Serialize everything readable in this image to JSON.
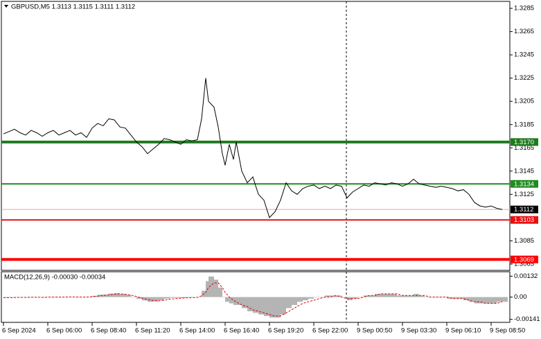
{
  "chart_data": [
    {
      "type": "line",
      "title": "GBPUSD,M5  1.3113 1.3115 1.3111 1.3112",
      "color": "#000000",
      "x": [
        0,
        4,
        8,
        12,
        16,
        20,
        24,
        28,
        32,
        36,
        40,
        44,
        48,
        52,
        56,
        60,
        64,
        68,
        72,
        76,
        80,
        84,
        88,
        92,
        96,
        100,
        104,
        108,
        112,
        116,
        120,
        124,
        128,
        132,
        136,
        140,
        143,
        146,
        148,
        152,
        155,
        158,
        160,
        163,
        166,
        168,
        172,
        176,
        180,
        184,
        188,
        192,
        196,
        200,
        204,
        208,
        212,
        216,
        220,
        224,
        228,
        232,
        236,
        240,
        244,
        248,
        252,
        256,
        260,
        264,
        268,
        272,
        276,
        280,
        284,
        288,
        292,
        296,
        300,
        304,
        308,
        312,
        316,
        320,
        324,
        328,
        332,
        336,
        340,
        344,
        348,
        352,
        356,
        360
      ],
      "values": [
        1.3177,
        1.3179,
        1.3181,
        1.3178,
        1.3176,
        1.318,
        1.3178,
        1.3175,
        1.3178,
        1.318,
        1.3176,
        1.3178,
        1.318,
        1.3176,
        1.3178,
        1.3174,
        1.3182,
        1.3186,
        1.3184,
        1.319,
        1.3189,
        1.3183,
        1.3182,
        1.3176,
        1.317,
        1.3166,
        1.316,
        1.3164,
        1.3168,
        1.3173,
        1.3172,
        1.317,
        1.3168,
        1.3172,
        1.3171,
        1.3172,
        1.319,
        1.3225,
        1.3205,
        1.32,
        1.3183,
        1.316,
        1.315,
        1.3168,
        1.3155,
        1.317,
        1.3145,
        1.3135,
        1.314,
        1.3125,
        1.312,
        1.3105,
        1.311,
        1.312,
        1.3135,
        1.3128,
        1.3125,
        1.313,
        1.3132,
        1.3133,
        1.313,
        1.3132,
        1.313,
        1.3133,
        1.3132,
        1.3122,
        1.3127,
        1.313,
        1.3133,
        1.3132,
        1.3135,
        1.3134,
        1.3133,
        1.3135,
        1.3134,
        1.3132,
        1.3134,
        1.3138,
        1.3134,
        1.3133,
        1.3132,
        1.3131,
        1.3132,
        1.3131,
        1.313,
        1.3128,
        1.3129,
        1.3125,
        1.3118,
        1.3115,
        1.3114,
        1.3115,
        1.3113,
        1.3112
      ],
      "xlim": [
        -1.5,
        365.5
      ],
      "ylim": [
        1.3291,
        1.30596
      ],
      "yticks": [
        1.3285,
        1.3265,
        1.3245,
        1.3225,
        1.3205,
        1.3185,
        1.3165,
        1.3145,
        1.3125,
        1.3085,
        1.3065
      ],
      "xticks": [
        {
          "value": 0,
          "label": "6 Sep 2024"
        },
        {
          "value": 32,
          "label": "6 Sep 06:00"
        },
        {
          "value": 64,
          "label": "6 Sep 08:40"
        },
        {
          "value": 96,
          "label": "6 Sep 11:20"
        },
        {
          "value": 128,
          "label": "6 Sep 14:00"
        },
        {
          "value": 160,
          "label": "6 Sep 16:40"
        },
        {
          "value": 192,
          "label": "6 Sep 19:20"
        },
        {
          "value": 224,
          "label": "6 Sep 22:00"
        },
        {
          "value": 256,
          "label": "9 Sep 00:50"
        },
        {
          "value": 288,
          "label": "9 Sep 03:30"
        },
        {
          "value": 320,
          "label": "9 Sep 06:10"
        },
        {
          "value": 352,
          "label": "9 Sep 08:50"
        }
      ],
      "separators": [
        247.5
      ],
      "levels": [
        {
          "value": 1.317,
          "label": "1.3170",
          "color": "#1e7b1e",
          "width": 4
        },
        {
          "value": 1.3134,
          "color": "#1f8c1f",
          "width": 2
        },
        {
          "value": 1.3112,
          "color": "#d2b48c",
          "width": 1,
          "label_color": "#000000"
        },
        {
          "value": 1.3103,
          "color": "#e81010",
          "width": 2
        },
        {
          "value": 1.3069,
          "color": "#ff0000",
          "width": 4
        }
      ]
    },
    {
      "type": "macd",
      "title": "MACD(12,26,9) -0.00030 -0.00034",
      "x": [
        0,
        4,
        8,
        12,
        16,
        20,
        24,
        28,
        32,
        36,
        40,
        44,
        48,
        52,
        56,
        60,
        64,
        68,
        72,
        76,
        80,
        84,
        88,
        92,
        96,
        100,
        104,
        108,
        112,
        116,
        120,
        124,
        128,
        132,
        136,
        140,
        143,
        146,
        148,
        152,
        155,
        158,
        160,
        163,
        166,
        168,
        172,
        176,
        180,
        184,
        188,
        192,
        196,
        200,
        204,
        208,
        212,
        216,
        220,
        224,
        228,
        232,
        236,
        240,
        244,
        248,
        252,
        256,
        260,
        264,
        268,
        272,
        276,
        280,
        284,
        288,
        292,
        296,
        300,
        304,
        308,
        312,
        316,
        320,
        324,
        328,
        332,
        336,
        340,
        344,
        348,
        352,
        356,
        360
      ],
      "histogram": [
        -5e-05,
        -3e-05,
        0,
        0,
        -3e-05,
        0,
        0,
        -3e-05,
        0,
        2e-05,
        0,
        0,
        2e-05,
        0,
        0,
        -2e-05,
        8e-05,
        0.00015,
        0.00016,
        0.00022,
        0.00025,
        0.0002,
        0.00015,
        2e-05,
        -0.00012,
        -0.00022,
        -0.0003,
        -0.00028,
        -0.0002,
        -0.0001,
        -5e-05,
        -5e-05,
        -6e-05,
        -2e-05,
        -2e-05,
        0,
        0.0004,
        0.001,
        0.0013,
        0.0011,
        0.0006,
        0,
        -0.0003,
        -0.0004,
        -0.0005,
        -0.0005,
        -0.0007,
        -0.0009,
        -0.001,
        -0.0011,
        -0.0012,
        -0.0013,
        -0.0013,
        -0.0011,
        -0.0007,
        -0.0005,
        -0.0003,
        -0.0002,
        -0.0001,
        0,
        0,
        0.0001,
        0.0001,
        0.0001,
        0,
        -0.0002,
        -0.0001,
        0,
        0.0001,
        0.0001,
        0.0002,
        0.0002,
        0.0002,
        0.0002,
        0.0001,
        0.0001,
        0.0001,
        0.0002,
        0.0001,
        0,
        0,
        0,
        0,
        -0.0001,
        -0.0001,
        -0.0001,
        -0.0002,
        -0.0003,
        -0.0004,
        -0.0004,
        -0.0004,
        -0.0004,
        -0.0003,
        -0.0003
      ],
      "signal": [
        -4e-05,
        -4e-05,
        -3e-05,
        -2e-05,
        -2e-05,
        -1e-05,
        -1e-05,
        -2e-05,
        -1e-05,
        0,
        0,
        0,
        1e-05,
        1e-05,
        0,
        0,
        2e-05,
        6e-05,
        0.0001,
        0.00014,
        0.00018,
        0.0002,
        0.00018,
        0.00012,
        4e-05,
        -6e-05,
        -0.00015,
        -0.00022,
        -0.00024,
        -0.0002,
        -0.00014,
        -0.0001,
        -7e-05,
        -5e-05,
        -4e-05,
        -2e-05,
        8e-05,
        0.0003,
        0.0006,
        0.0009,
        0.0009,
        0.0006,
        0.0003,
        0,
        -0.0002,
        -0.0003,
        -0.0005,
        -0.0006,
        -0.0008,
        -0.0009,
        -0.001,
        -0.0011,
        -0.0012,
        -0.0012,
        -0.001,
        -0.0008,
        -0.0006,
        -0.0004,
        -0.0003,
        -0.0002,
        -0.0001,
        0,
        0,
        0.0001,
        0,
        -0.0001,
        -0.0001,
        -0.0001,
        0,
        0.0001,
        0.0001,
        0.0002,
        0.0002,
        0.0002,
        0.0002,
        0.0001,
        0.0001,
        0.0001,
        0.0001,
        0.0001,
        0,
        0,
        0,
        0,
        -0.0001,
        -0.0001,
        -0.0001,
        -0.0002,
        -0.0003,
        -0.0003,
        -0.0004,
        -0.0004,
        -0.0004,
        -0.0003
      ],
      "histogram_color": "#b4b4b4",
      "signal_color": "#e00000",
      "xlim": [
        -1.5,
        365.5
      ],
      "ylim": [
        0.0016,
        -0.0016
      ],
      "yticks": [
        0.00132,
        {
          "value": 0,
          "label": "0.00"
        },
        -0.00141
      ]
    }
  ]
}
